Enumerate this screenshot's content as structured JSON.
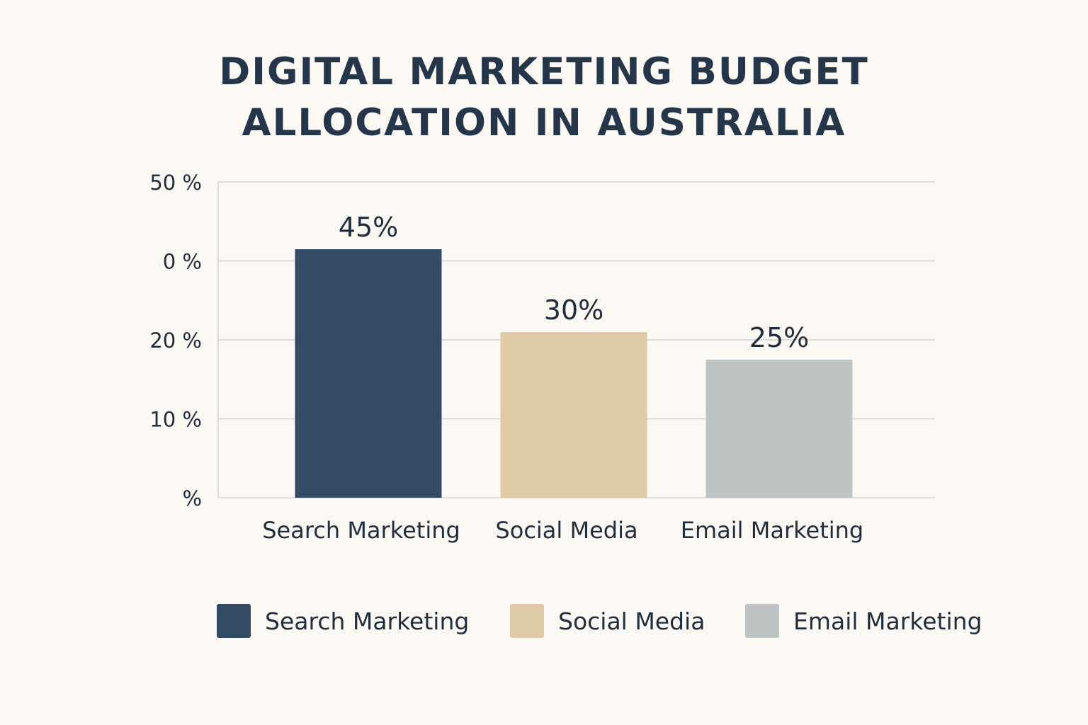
{
  "chart_data": {
    "type": "bar",
    "title_lines": [
      "DIGITAL MARKETING BUDGET",
      "ALLOCATION IN AUSTRALIA"
    ],
    "categories": [
      "Search Marketing",
      "Social Media",
      "Email Marketing"
    ],
    "values": [
      45,
      30,
      25
    ],
    "data_labels": [
      "45%",
      "30%",
      "25%"
    ],
    "colors": [
      "#344b66",
      "#dfcaa6",
      "#bec4c3"
    ],
    "y_ticks": [
      {
        "label": "50 %"
      },
      {
        "label": "0 %"
      },
      {
        "label": "20 %"
      },
      {
        "label": "10 %"
      },
      {
        "label": "%"
      }
    ],
    "grid": true,
    "legend": {
      "placement": "bottom",
      "entries": [
        "Search Marketing",
        "Social Media",
        "Email Marketing"
      ]
    }
  }
}
